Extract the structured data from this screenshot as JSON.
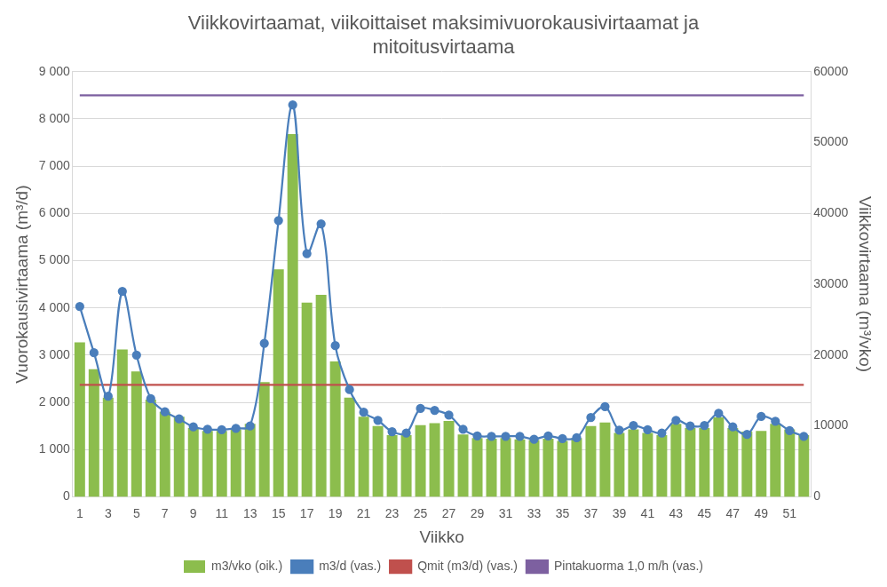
{
  "chart_data": {
    "type": "bar",
    "title": [
      "Viikkovirtaamat, viikoittaiset maksimivuorokausivirtaamat ja",
      "mitoitusvirtaama"
    ],
    "x_label": "Viikko",
    "y_label": "Vuorokausivirtaama (m³/d)",
    "y2_label": "Viikkovirtaama (m³/vko)",
    "categories": [
      "1",
      null,
      "3",
      null,
      "5",
      null,
      "7",
      null,
      "9",
      null,
      "11",
      null,
      "13",
      null,
      "15",
      null,
      "17",
      null,
      "19",
      null,
      "21",
      null,
      "23",
      null,
      "25",
      null,
      "27",
      null,
      "29",
      null,
      "31",
      null,
      "33",
      null,
      "35",
      null,
      "37",
      null,
      "39",
      null,
      "41",
      null,
      "43",
      null,
      "45",
      null,
      "47",
      null,
      "49",
      null,
      "51",
      null
    ],
    "ylim": [
      0,
      9000
    ],
    "yticks": [
      0,
      {
        "value": 1000,
        "label": "1 000"
      },
      {
        "value": 2000,
        "label": "2 000"
      },
      {
        "value": 3000,
        "label": "3 000"
      },
      {
        "value": 4000,
        "label": "4 000"
      },
      {
        "value": 5000,
        "label": "5 000"
      },
      {
        "value": 6000,
        "label": "6 000"
      },
      {
        "value": 7000,
        "label": "7 000"
      },
      {
        "value": 8000,
        "label": "8 000"
      },
      {
        "value": 9000,
        "label": "9 000"
      }
    ],
    "y2lim": [
      0,
      60000
    ],
    "y2ticks": [
      0,
      10000,
      20000,
      30000,
      40000,
      50000,
      60000
    ],
    "grid": true,
    "legend": "bottom",
    "series": [
      {
        "name": "m3/vko (oik.)",
        "type": "bar",
        "axis": "y2",
        "color": "#8cbd4d",
        "values": [
          21800,
          18000,
          14000,
          20800,
          17700,
          13700,
          12000,
          11300,
          9700,
          9300,
          9300,
          9500,
          10300,
          16200,
          32100,
          51200,
          27400,
          28500,
          19100,
          14000,
          11300,
          10000,
          8700,
          8700,
          10100,
          10400,
          10700,
          8800,
          8300,
          8200,
          8300,
          8100,
          8000,
          8200,
          7900,
          8300,
          10000,
          10500,
          9000,
          9500,
          9000,
          8700,
          10300,
          9700,
          9700,
          11200,
          9700,
          9200,
          9300,
          10300,
          9500,
          8700
        ]
      },
      {
        "name": "m3/d (vas.)",
        "type": "line",
        "color": "#4a7ebb",
        "marker": "circle",
        "line_style": "solid",
        "values": [
          4030,
          3050,
          2130,
          4350,
          3000,
          2080,
          1800,
          1650,
          1480,
          1430,
          1420,
          1450,
          1500,
          3250,
          5850,
          8300,
          5150,
          5780,
          3200,
          2270,
          1790,
          1620,
          1380,
          1350,
          1870,
          1830,
          1730,
          1430,
          1290,
          1280,
          1280,
          1280,
          1220,
          1290,
          1230,
          1250,
          1680,
          1910,
          1410,
          1510,
          1420,
          1350,
          1620,
          1500,
          1510,
          1770,
          1480,
          1320,
          1700,
          1600,
          1400,
          1280
        ]
      },
      {
        "name": "Qmit (m3/d) (vas.)",
        "type": "line",
        "color": "#c0504d",
        "marker": "none",
        "line_style": "solid",
        "values": [
          2370,
          2370,
          2370,
          2370,
          2370,
          2370,
          2370,
          2370,
          2370,
          2370,
          2370,
          2370,
          2370,
          2370,
          2370,
          2370,
          2370,
          2370,
          2370,
          2370,
          2370,
          2370,
          2370,
          2370,
          2370,
          2370,
          2370,
          2370,
          2370,
          2370,
          2370,
          2370,
          2370,
          2370,
          2370,
          2370,
          2370,
          2370,
          2370,
          2370,
          2370,
          2370,
          2370,
          2370,
          2370,
          2370,
          2370,
          2370,
          2370,
          2370,
          2370,
          2370
        ]
      },
      {
        "name": "Pintakuorma 1,0 m/h (vas.)",
        "type": "line",
        "color": "#7d60a0",
        "marker": "none",
        "line_style": "solid",
        "values": [
          8500,
          8500,
          8500,
          8500,
          8500,
          8500,
          8500,
          8500,
          8500,
          8500,
          8500,
          8500,
          8500,
          8500,
          8500,
          8500,
          8500,
          8500,
          8500,
          8500,
          8500,
          8500,
          8500,
          8500,
          8500,
          8500,
          8500,
          8500,
          8500,
          8500,
          8500,
          8500,
          8500,
          8500,
          8500,
          8500,
          8500,
          8500,
          8500,
          8500,
          8500,
          8500,
          8500,
          8500,
          8500,
          8500,
          8500,
          8500,
          8500,
          8500,
          8500,
          8500
        ]
      }
    ]
  }
}
